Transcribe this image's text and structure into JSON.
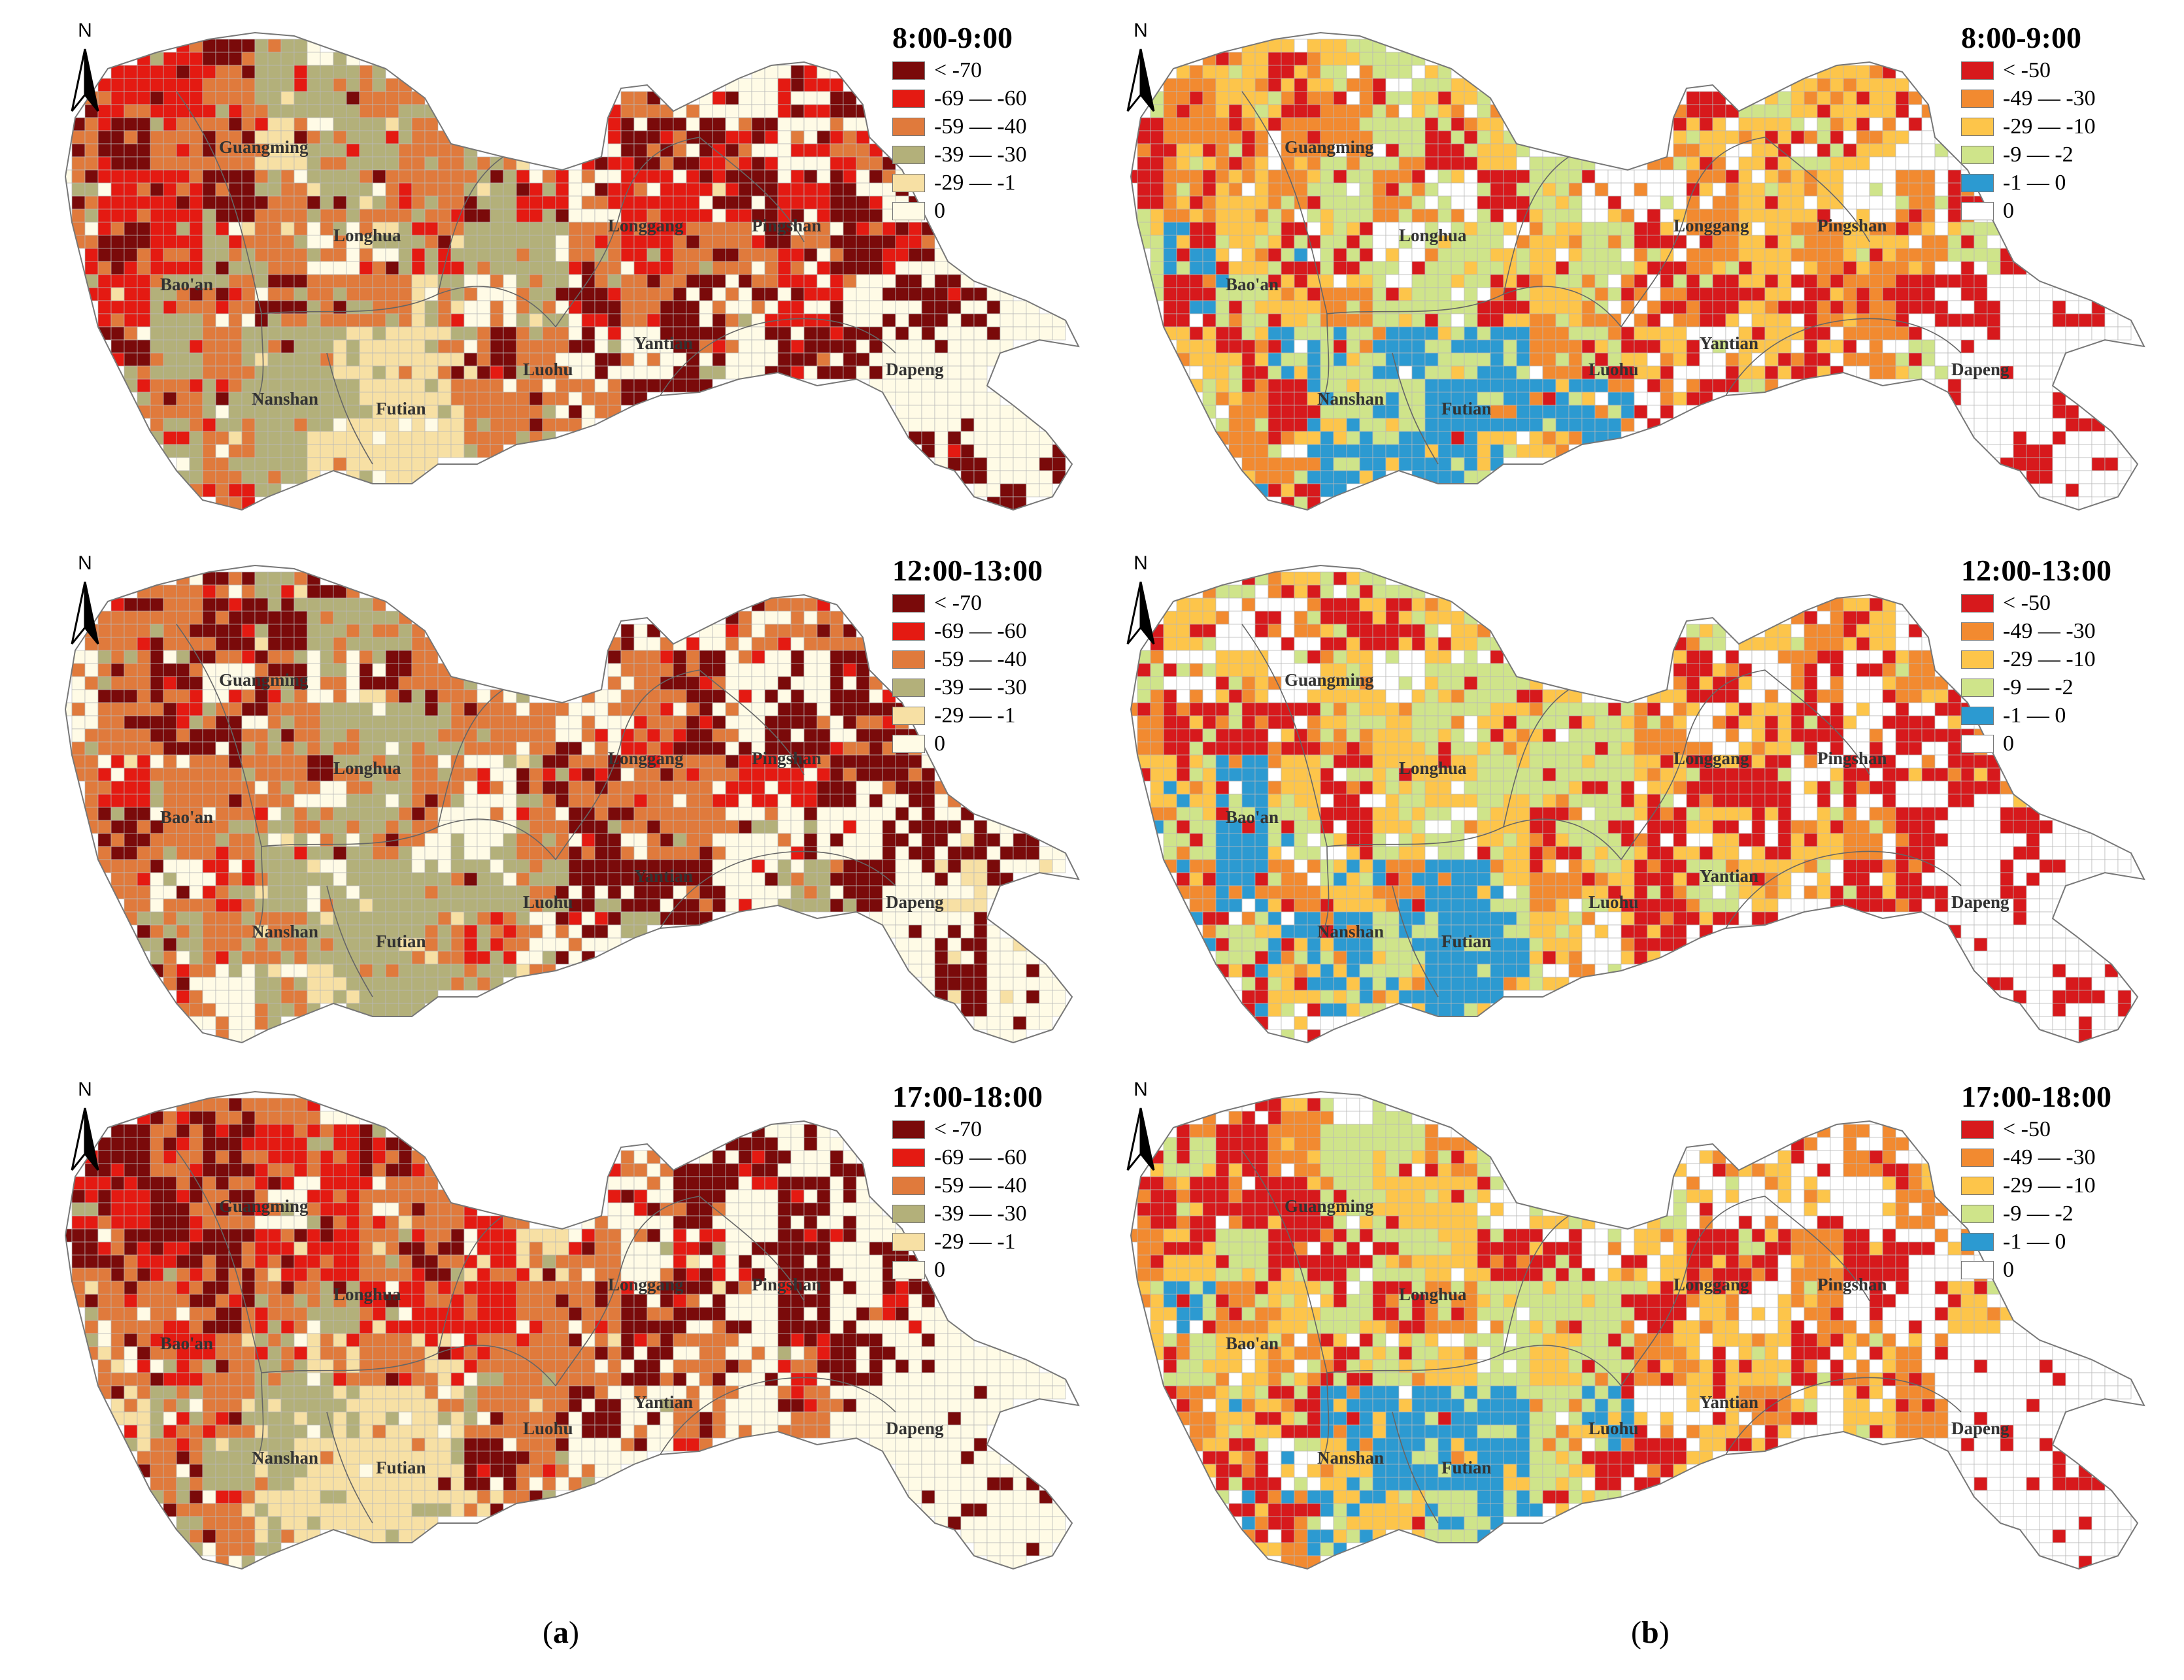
{
  "north_label": "N",
  "districts": [
    "Guangming",
    "Longhua",
    "Bao'an",
    "Nanshan",
    "Futian",
    "Luohu",
    "Longgang",
    "Pingshan",
    "Yantian",
    "Dapeng"
  ],
  "panels": [
    {
      "column": "a",
      "time": "8:00-9:00",
      "legend": [
        {
          "label": "< -70",
          "color": "#7a0a0a"
        },
        {
          "label": "-69 — -60",
          "color": "#e41a12"
        },
        {
          "label": "-59 — -40",
          "color": "#e07a3c"
        },
        {
          "label": "-39 — -30",
          "color": "#b3b07a"
        },
        {
          "label": "-29 — -1",
          "color": "#f7e0a4"
        },
        {
          "label": "0",
          "color": "#fffbe6"
        }
      ]
    },
    {
      "column": "b",
      "time": "8:00-9:00",
      "legend": [
        {
          "label": "< -50",
          "color": "#d7191c"
        },
        {
          "label": "-49 — -30",
          "color": "#f28a30"
        },
        {
          "label": "-29 — -10",
          "color": "#fdc54a"
        },
        {
          "label": "-9 — -2",
          "color": "#cfe48a"
        },
        {
          "label": "-1 — 0",
          "color": "#2c9ad1"
        },
        {
          "label": "0",
          "color": "#ffffff"
        }
      ]
    },
    {
      "column": "a",
      "time": "12:00-13:00",
      "legend": [
        {
          "label": "< -70",
          "color": "#7a0a0a"
        },
        {
          "label": "-69 — -60",
          "color": "#e41a12"
        },
        {
          "label": "-59 — -40",
          "color": "#e07a3c"
        },
        {
          "label": "-39 — -30",
          "color": "#b3b07a"
        },
        {
          "label": "-29 — -1",
          "color": "#f7e0a4"
        },
        {
          "label": "0",
          "color": "#fffbe6"
        }
      ]
    },
    {
      "column": "b",
      "time": "12:00-13:00",
      "legend": [
        {
          "label": "< -50",
          "color": "#d7191c"
        },
        {
          "label": "-49 — -30",
          "color": "#f28a30"
        },
        {
          "label": "-29 — -10",
          "color": "#fdc54a"
        },
        {
          "label": "-9 — -2",
          "color": "#cfe48a"
        },
        {
          "label": "-1 — 0",
          "color": "#2c9ad1"
        },
        {
          "label": "0",
          "color": "#ffffff"
        }
      ]
    },
    {
      "column": "a",
      "time": "17:00-18:00",
      "legend": [
        {
          "label": "< -70",
          "color": "#7a0a0a"
        },
        {
          "label": "-69 — -60",
          "color": "#e41a12"
        },
        {
          "label": "-59 — -40",
          "color": "#e07a3c"
        },
        {
          "label": "-39 — -30",
          "color": "#b3b07a"
        },
        {
          "label": "-29 — -1",
          "color": "#f7e0a4"
        },
        {
          "label": "0",
          "color": "#fffbe6"
        }
      ]
    },
    {
      "column": "b",
      "time": "17:00-18:00",
      "legend": [
        {
          "label": "< -50",
          "color": "#d7191c"
        },
        {
          "label": "-49 — -30",
          "color": "#f28a30"
        },
        {
          "label": "-29 — -10",
          "color": "#fdc54a"
        },
        {
          "label": "-9 — -2",
          "color": "#cfe48a"
        },
        {
          "label": "-1 — 0",
          "color": "#2c9ad1"
        },
        {
          "label": "0",
          "color": "#ffffff"
        }
      ]
    }
  ],
  "subfigure_labels": {
    "a": "a",
    "b": "b"
  }
}
